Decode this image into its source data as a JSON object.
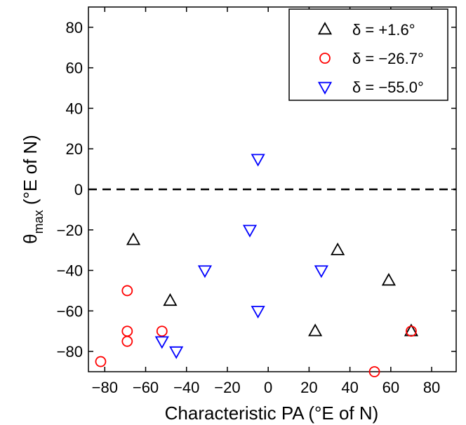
{
  "chart_data": {
    "type": "scatter",
    "xlabel": "Characteristic PA (°E of N)",
    "ylabel_main": "θ",
    "ylabel_sub": "max",
    "ylabel_rest": " (°E of N)",
    "xlim": [
      -88,
      92
    ],
    "ylim": [
      -90,
      90
    ],
    "xticks": [
      -80,
      -60,
      -40,
      -20,
      0,
      20,
      40,
      60,
      80
    ],
    "yticks": [
      -80,
      -60,
      -40,
      -20,
      0,
      20,
      40,
      60,
      80
    ],
    "xtick_labels": [
      "−80",
      "−60",
      "−40",
      "−20",
      "0",
      "20",
      "40",
      "60",
      "80"
    ],
    "ytick_labels": [
      "−80",
      "−60",
      "−40",
      "−20",
      "0",
      "20",
      "40",
      "60",
      "80"
    ],
    "grid": false,
    "legend_position": "top-right",
    "reference_line": {
      "y": 0,
      "style": "dashed",
      "color": "#000000"
    },
    "series": [
      {
        "name": "δ = +1.6°",
        "marker": "triangle-up",
        "color": "#000000",
        "points": [
          [
            -66,
            -25
          ],
          [
            -48,
            -55
          ],
          [
            23,
            -70
          ],
          [
            34,
            -30
          ],
          [
            59,
            -45
          ],
          [
            70,
            -70
          ]
        ]
      },
      {
        "name": "δ = −26.7°",
        "marker": "circle",
        "color": "#ff0000",
        "points": [
          [
            -82,
            -85
          ],
          [
            -69,
            -50
          ],
          [
            -69,
            -70
          ],
          [
            -69,
            -75
          ],
          [
            -52,
            -70
          ],
          [
            52,
            -90
          ],
          [
            70,
            -70
          ]
        ]
      },
      {
        "name": "δ = −55.0°",
        "marker": "triangle-down",
        "color": "#0000ff",
        "points": [
          [
            -52,
            -75
          ],
          [
            -45,
            -80
          ],
          [
            -31,
            -40
          ],
          [
            -9,
            -20
          ],
          [
            -5,
            15
          ],
          [
            -5,
            -60
          ],
          [
            26,
            -40
          ]
        ]
      }
    ]
  }
}
